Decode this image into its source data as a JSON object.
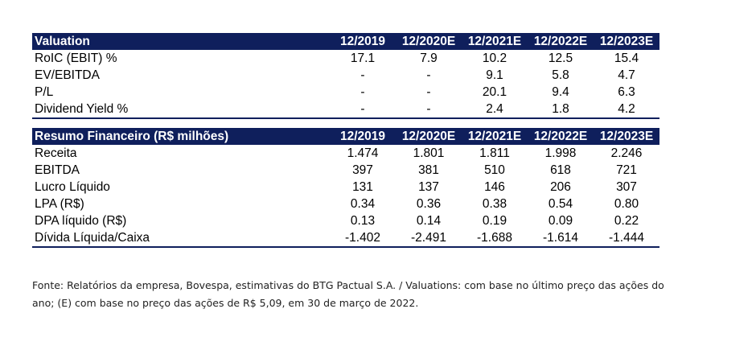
{
  "valuation": {
    "title": "Valuation",
    "columns": [
      "12/2019",
      "12/2020E",
      "12/2021E",
      "12/2022E",
      "12/2023E"
    ],
    "rows": [
      {
        "label": "RoIC (EBIT) %",
        "values": [
          "17.1",
          "7.9",
          "10.2",
          "12.5",
          "15.4"
        ]
      },
      {
        "label": "EV/EBITDA",
        "values": [
          "-",
          "-",
          "9.1",
          "5.8",
          "4.7"
        ]
      },
      {
        "label": "P/L",
        "values": [
          "-",
          "-",
          "20.1",
          "9.4",
          "6.3"
        ]
      },
      {
        "label": "Dividend Yield %",
        "values": [
          "-",
          "-",
          "2.4",
          "1.8",
          "4.2"
        ]
      }
    ]
  },
  "resumo": {
    "title": "Resumo Financeiro (R$ milhões)",
    "columns": [
      "12/2019",
      "12/2020E",
      "12/2021E",
      "12/2022E",
      "12/2023E"
    ],
    "rows": [
      {
        "label": "Receita",
        "values": [
          "1.474",
          "1.801",
          "1.811",
          "1.998",
          "2.246"
        ]
      },
      {
        "label": "EBITDA",
        "values": [
          "397",
          "381",
          "510",
          "618",
          "721"
        ]
      },
      {
        "label": "Lucro Líquido",
        "values": [
          "131",
          "137",
          "146",
          "206",
          "307"
        ]
      },
      {
        "label": "LPA (R$)",
        "values": [
          "0.34",
          "0.36",
          "0.38",
          "0.54",
          "0.80"
        ]
      },
      {
        "label": "DPA líquido (R$)",
        "values": [
          "0.13",
          "0.14",
          "0.19",
          "0.09",
          "0.22"
        ]
      },
      {
        "label": "Dívida Líquida/Caixa",
        "values": [
          "-1.402",
          "-2.491",
          "-1.688",
          "-1.614",
          "-1.444"
        ]
      }
    ]
  },
  "source_note": {
    "line1": "Fonte: Relatórios da empresa, Bovespa, estimativas do BTG Pactual S.A. / Valuations: com base no último preço das ações do",
    "line2": "ano; (E) com base no preço das ações de R$ 5,09, em 30 de março de 2022."
  },
  "colors": {
    "header_bg": "#0f1f5c",
    "header_text": "#ffffff"
  }
}
